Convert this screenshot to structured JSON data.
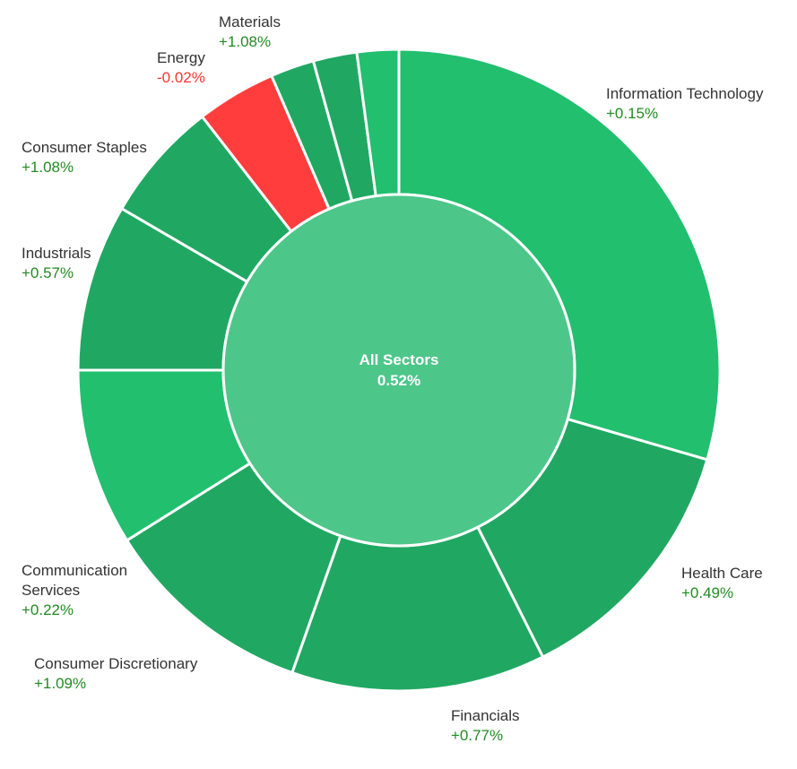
{
  "chart_data": {
    "type": "sunburst",
    "center": {
      "name": "All Sectors",
      "change": "0.52%"
    },
    "colors": {
      "positive": "#22bf6f",
      "positive_dark": "#20a862",
      "negative": "#ff3d3d",
      "center": "#4dc68a",
      "positive_text": "#228b22",
      "negative_text": "#ff3333"
    },
    "segments": [
      {
        "name": "Information Technology",
        "change": "+0.15%",
        "value": 0.15,
        "weight": 29.5,
        "shade": "positive",
        "label_lines": [
          "Information Technology"
        ]
      },
      {
        "name": "Health Care",
        "change": "+0.49%",
        "value": 0.49,
        "weight": 13.1,
        "shade": "positive_dark",
        "label_lines": [
          "Health Care"
        ]
      },
      {
        "name": "Financials",
        "change": "+0.77%",
        "value": 0.77,
        "weight": 12.8,
        "shade": "positive_dark",
        "label_lines": [
          "Financials"
        ]
      },
      {
        "name": "Consumer Discretionary",
        "change": "+1.09%",
        "value": 1.09,
        "weight": 10.7,
        "shade": "positive_dark",
        "label_lines": [
          "Consumer Discretionary"
        ]
      },
      {
        "name": "Communication Services",
        "change": "+0.22%",
        "value": 0.22,
        "weight": 8.9,
        "shade": "positive",
        "label_lines": [
          "Communication",
          "Services"
        ]
      },
      {
        "name": "Industrials",
        "change": "+0.57%",
        "value": 0.57,
        "weight": 8.4,
        "shade": "positive_dark",
        "label_lines": [
          "Industrials"
        ]
      },
      {
        "name": "Consumer Staples",
        "change": "+1.08%",
        "value": 1.08,
        "weight": 6.1,
        "shade": "positive_dark",
        "label_lines": [
          "Consumer Staples"
        ]
      },
      {
        "name": "Energy",
        "change": "-0.02%",
        "value": -0.02,
        "weight": 4.0,
        "shade": "negative",
        "label_lines": [
          "Energy"
        ]
      },
      {
        "name": "Materials",
        "change": "+1.08%",
        "value": 1.08,
        "weight": 2.2,
        "shade": "positive_dark",
        "label_lines": [
          "Materials"
        ]
      },
      {
        "name": "",
        "change": "",
        "value": null,
        "weight": 2.2,
        "shade": "positive_dark",
        "label_lines": []
      },
      {
        "name": "",
        "change": "",
        "value": null,
        "weight": 2.1,
        "shade": "positive",
        "label_lines": []
      }
    ]
  }
}
